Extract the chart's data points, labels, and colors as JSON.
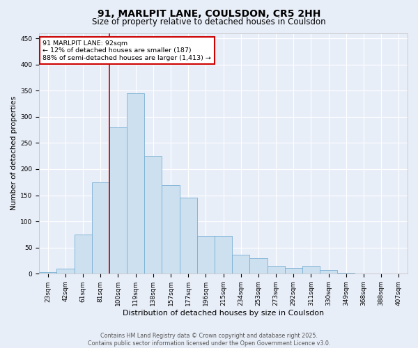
{
  "title": "91, MARLPIT LANE, COULSDON, CR5 2HH",
  "subtitle": "Size of property relative to detached houses in Coulsdon",
  "xlabel": "Distribution of detached houses by size in Coulsdon",
  "ylabel": "Number of detached properties",
  "categories": [
    "23sqm",
    "42sqm",
    "61sqm",
    "81sqm",
    "100sqm",
    "119sqm",
    "138sqm",
    "157sqm",
    "177sqm",
    "196sqm",
    "215sqm",
    "234sqm",
    "253sqm",
    "273sqm",
    "292sqm",
    "311sqm",
    "330sqm",
    "349sqm",
    "368sqm",
    "388sqm",
    "407sqm"
  ],
  "values": [
    3,
    10,
    75,
    175,
    280,
    345,
    225,
    170,
    145,
    72,
    72,
    37,
    30,
    15,
    11,
    15,
    7,
    2,
    1,
    0,
    1
  ],
  "bar_color": "#cce0f0",
  "bar_edge_color": "#7ab0d4",
  "background_color": "#e8eef8",
  "grid_color": "#ffffff",
  "annotation_text": "91 MARLPIT LANE: 92sqm\n← 12% of detached houses are smaller (187)\n88% of semi-detached houses are larger (1,413) →",
  "annotation_box_facecolor": "#ffffff",
  "annotation_box_edge_color": "#cc0000",
  "vline_color": "#cc0000",
  "vline_x": 3.5,
  "ylim": [
    0,
    460
  ],
  "yticks": [
    0,
    50,
    100,
    150,
    200,
    250,
    300,
    350,
    400,
    450
  ],
  "footer_line1": "Contains HM Land Registry data © Crown copyright and database right 2025.",
  "footer_line2": "Contains public sector information licensed under the Open Government Licence v3.0.",
  "title_fontsize": 10,
  "subtitle_fontsize": 8.5,
  "xlabel_fontsize": 8,
  "ylabel_fontsize": 7.5,
  "tick_fontsize": 6.5,
  "annotation_fontsize": 6.8,
  "footer_fontsize": 5.8
}
